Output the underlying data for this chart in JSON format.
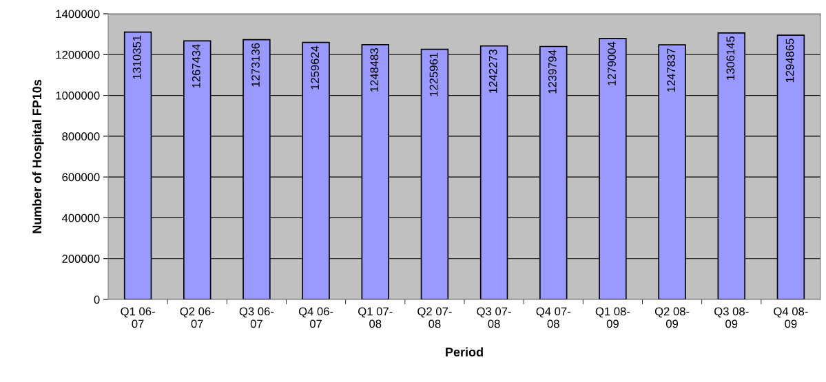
{
  "chart_data": {
    "type": "bar",
    "xlabel": "Period",
    "ylabel": "Number of Hospital FP10s",
    "categories": [
      "Q1 06-\n07",
      "Q2 06-\n07",
      "Q3 06-\n07",
      "Q4 06-\n07",
      "Q1 07-\n08",
      "Q2 07-\n08",
      "Q3 07-\n08",
      "Q4 07-\n08",
      "Q1 08-\n09",
      "Q2 08-\n09",
      "Q3 08-\n09",
      "Q4 08-\n09"
    ],
    "values": [
      1310351,
      1267434,
      1273136,
      1259624,
      1248483,
      1225961,
      1242273,
      1239794,
      1279004,
      1247837,
      1306145,
      1294865
    ],
    "color": "#9999ff",
    "ylim": [
      0,
      1400000
    ],
    "yticks": [
      0,
      200000,
      400000,
      600000,
      800000,
      1000000,
      1200000,
      1400000
    ],
    "grid": "y",
    "data_labels": true
  }
}
